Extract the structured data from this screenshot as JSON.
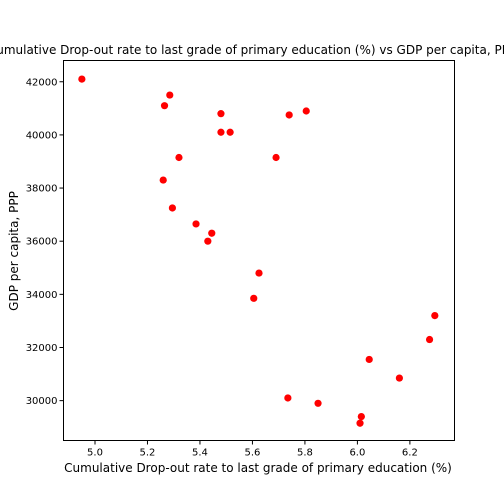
{
  "chart_data": {
    "type": "scatter",
    "title": "Cumulative Drop-out rate to last grade of primary education (%) vs GDP per capita, PPP",
    "xlabel": "Cumulative Drop-out rate to last grade of primary education (%)",
    "ylabel": "GDP per capita, PPP",
    "xlim": [
      4.88,
      6.37
    ],
    "ylim": [
      28500,
      42800
    ],
    "xticks": [
      5.0,
      5.2,
      5.4,
      5.6,
      5.8,
      6.0,
      6.2
    ],
    "xtick_labels": [
      "5.0",
      "5.2",
      "5.4",
      "5.6",
      "5.8",
      "6.0",
      "6.2"
    ],
    "yticks": [
      30000,
      32000,
      34000,
      36000,
      38000,
      40000,
      42000
    ],
    "ytick_labels": [
      "30000",
      "32000",
      "34000",
      "36000",
      "38000",
      "40000",
      "42000"
    ],
    "grid": false,
    "marker_color": "#ff0000",
    "series": [
      {
        "points": [
          [
            4.95,
            42100
          ],
          [
            5.265,
            41100
          ],
          [
            5.285,
            41500
          ],
          [
            5.48,
            40800
          ],
          [
            5.48,
            40100
          ],
          [
            5.515,
            40100
          ],
          [
            5.74,
            40750
          ],
          [
            5.805,
            40900
          ],
          [
            5.32,
            39150
          ],
          [
            5.69,
            39150
          ],
          [
            5.26,
            38300
          ],
          [
            5.295,
            37250
          ],
          [
            5.385,
            36650
          ],
          [
            5.445,
            36300
          ],
          [
            5.43,
            36000
          ],
          [
            5.625,
            34800
          ],
          [
            5.605,
            33850
          ],
          [
            6.295,
            33200
          ],
          [
            6.275,
            32300
          ],
          [
            6.045,
            31550
          ],
          [
            6.16,
            30850
          ],
          [
            5.735,
            30100
          ],
          [
            5.85,
            29900
          ],
          [
            6.015,
            29400
          ],
          [
            6.01,
            29150
          ]
        ]
      }
    ]
  }
}
